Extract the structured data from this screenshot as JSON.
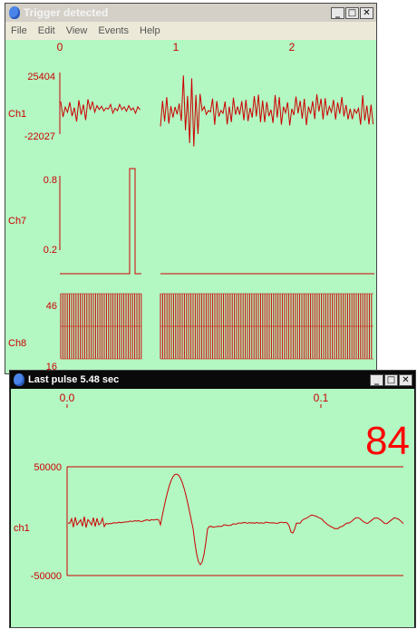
{
  "trigger_window": {
    "title": "Trigger detected",
    "menu": [
      "File",
      "Edit",
      "View",
      "Events",
      "Help"
    ],
    "time_ticks": [
      "0",
      "1",
      "2"
    ],
    "channels": [
      {
        "name": "Ch1",
        "max": "25404",
        "min": "-22027"
      },
      {
        "name": "Ch7",
        "max": "0.8",
        "min": "0.2"
      },
      {
        "name": "Ch8",
        "max": "46",
        "min": "16"
      }
    ]
  },
  "pulse_window": {
    "title": "Last pulse 5.48 sec",
    "time_ticks": [
      "0.0",
      "0.1"
    ],
    "count": "84",
    "channel": {
      "name": "ch1",
      "max": "50000",
      "min": "-50000"
    }
  },
  "colors": {
    "plot_bg": "#b3f7c3",
    "trace": "#cc0000",
    "count_text": "#ff0000",
    "titlebar_active": "#0a0a0a",
    "titlebar_inactive": "#d4d0c8"
  }
}
